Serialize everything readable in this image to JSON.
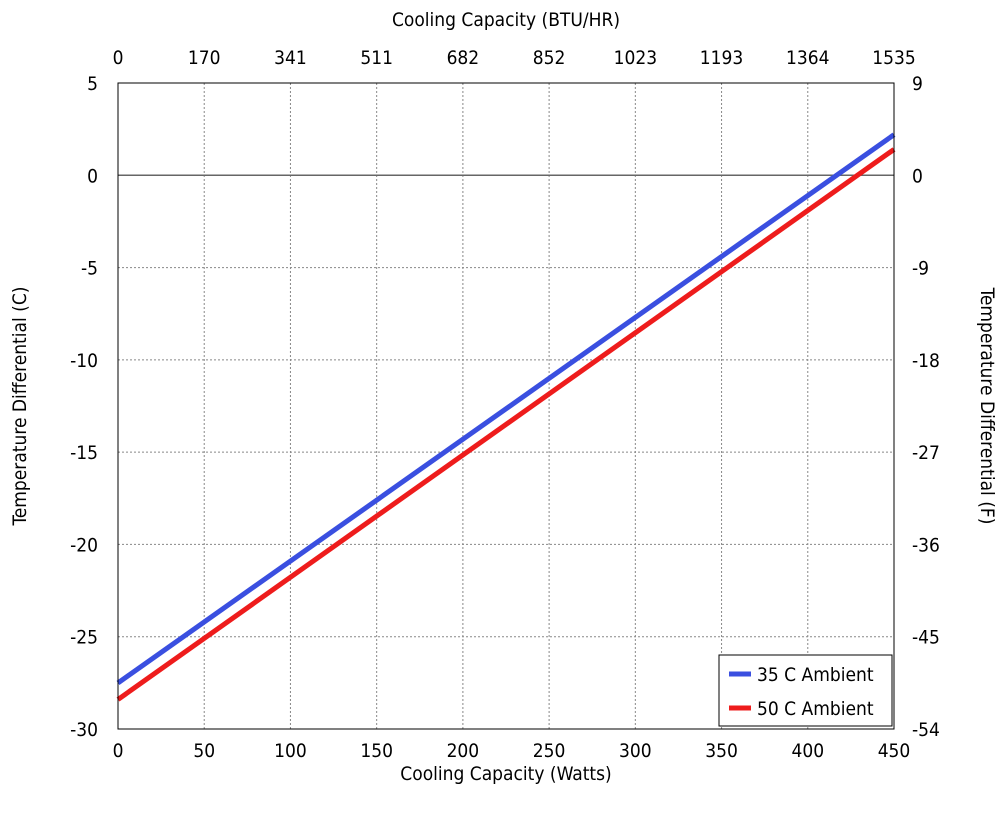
{
  "chart_data": {
    "type": "line",
    "title": "",
    "xlabel": "Cooling Capacity (Watts)",
    "x2label": "Cooling Capacity (BTU/HR)",
    "ylabel": "Temperature Differential (C)",
    "y2label": "Temperature Differential (F)",
    "xlim": [
      0,
      450
    ],
    "ylim": [
      -30,
      5
    ],
    "x_ticks": [
      "0",
      "50",
      "100",
      "150",
      "200",
      "250",
      "300",
      "350",
      "400",
      "450"
    ],
    "x2_ticks": [
      "0",
      "170",
      "341",
      "511",
      "682",
      "852",
      "1023",
      "1193",
      "1364",
      "1535"
    ],
    "y_ticks": [
      "5",
      "0",
      "-5",
      "-10",
      "-15",
      "-20",
      "-25",
      "-30"
    ],
    "y2_ticks": [
      "9",
      "0",
      "-9",
      "-18",
      "-27",
      "-36",
      "-45",
      "-54"
    ],
    "grid": true,
    "legend_position": "bottom-right",
    "series": [
      {
        "name": "35 C Ambient",
        "color": "#3a4fe0",
        "x": [
          0,
          450
        ],
        "y": [
          -27.5,
          2.2
        ]
      },
      {
        "name": "50 C Ambient",
        "color": "#ee1c1c",
        "x": [
          0,
          450
        ],
        "y": [
          -28.4,
          1.4
        ]
      }
    ]
  }
}
